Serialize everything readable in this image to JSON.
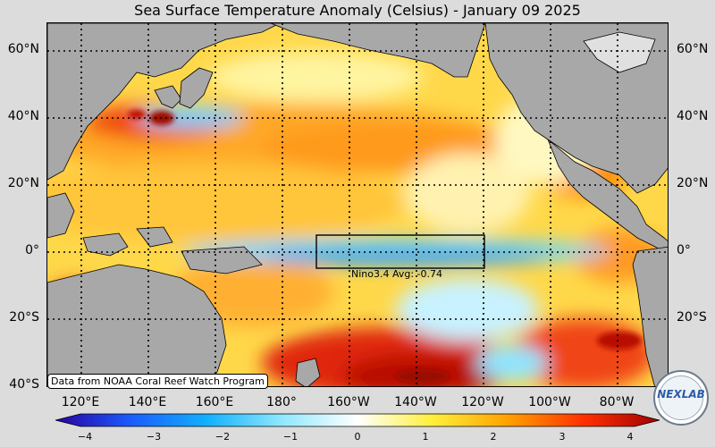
{
  "title": "Sea Surface Temperature Anomaly (Celsius) - January 09 2025",
  "latitude_labels": [
    "60°N",
    "40°N",
    "20°N",
    "0°",
    "20°S",
    "40°S"
  ],
  "longitude_labels": [
    "120°E",
    "140°E",
    "160°E",
    "180°",
    "160°W",
    "140°W",
    "120°W",
    "100°W",
    "80°W"
  ],
  "nino_label": "Nino3.4 Avg: -0.74",
  "credit": "Data from NOAA Coral Reef Watch Program",
  "colorbar": {
    "ticks": [
      "−4",
      "−3",
      "−2",
      "−1",
      "0",
      "1",
      "2",
      "3",
      "4"
    ],
    "colors": [
      "#2a00a0",
      "#1a5cff",
      "#12b0ff",
      "#8fe8ff",
      "#ffffff",
      "#ffef3a",
      "#ffa000",
      "#ff3000",
      "#a00000"
    ]
  },
  "logo_text": "NEXLAB",
  "colors": {
    "land": "#a8a8a8",
    "warm": "#ffb020",
    "hot": "#d02000",
    "cool": "#80e0ff",
    "cold": "#2a7ad8",
    "frame_bg": "#dcdcdc"
  },
  "chart_data": {
    "type": "heatmap",
    "title": "Sea Surface Temperature Anomaly (Celsius) - January 09 2025",
    "units": "Celsius",
    "range": [
      -4,
      4
    ],
    "lat_range": [
      "40°S",
      "68°N"
    ],
    "lon_range": [
      "110°E",
      "72°W"
    ],
    "annotation": "Nino3.4 Avg: -0.74"
  }
}
